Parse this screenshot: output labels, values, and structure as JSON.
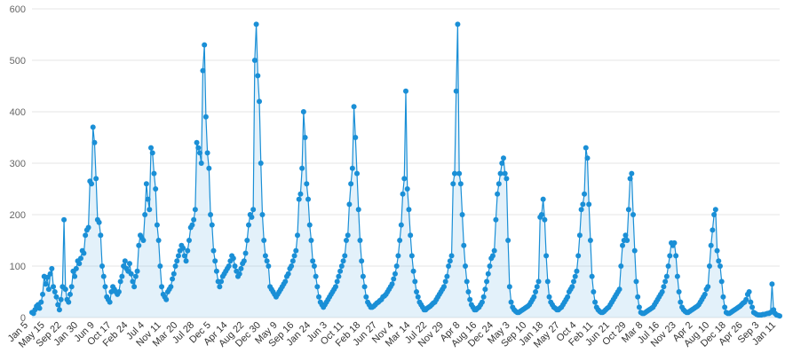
{
  "chart_data": {
    "type": "area",
    "title": "",
    "xlabel": "",
    "ylabel": "",
    "ylim": [
      0,
      600
    ],
    "yticks": [
      0,
      100,
      200,
      300,
      400,
      500,
      600
    ],
    "grid": true,
    "legend": "none",
    "colors": {
      "series": "#1a8fd6",
      "grid": "#e6e6e6",
      "tick_text": "#666666"
    },
    "x_tick_labels": [
      "Jan 5",
      "May 15",
      "Sep 22",
      "Jan 30",
      "Jun 9",
      "Oct 17",
      "Feb 24",
      "Jul 4",
      "Nov 11",
      "Mar 20",
      "Jul 28",
      "Dec 5",
      "Apr 14",
      "Aug 22",
      "Dec 30",
      "May 9",
      "Sep 16",
      "Jan 24",
      "Jun 3",
      "Oct 11",
      "Feb 18",
      "Jun 27",
      "Nov 4",
      "Mar 14",
      "Jul 22",
      "Nov 29",
      "Apr 8",
      "Aug 16",
      "Dec 24",
      "May 3",
      "Sep 10",
      "Jan 18",
      "May 27",
      "Oct 4",
      "Feb 11",
      "Jun 21",
      "Oct 29",
      "Mar 8",
      "Jul 16",
      "Nov 23",
      "Apr 2",
      "Aug 10",
      "Dec 18",
      "Apr 26",
      "Sep 3",
      "Jan 11"
    ],
    "series": [
      {
        "values": [
          10,
          8,
          15,
          22,
          25,
          18,
          30,
          45,
          80,
          65,
          78,
          55,
          85,
          95,
          60,
          50,
          40,
          25,
          15,
          35,
          60,
          190,
          55,
          35,
          30,
          45,
          60,
          90,
          80,
          95,
          110,
          105,
          115,
          130,
          125,
          160,
          170,
          175,
          265,
          260,
          370,
          340,
          270,
          190,
          185,
          160,
          100,
          80,
          60,
          40,
          35,
          30,
          50,
          60,
          55,
          50,
          45,
          50,
          70,
          80,
          100,
          110,
          95,
          90,
          105,
          85,
          70,
          60,
          80,
          90,
          140,
          160,
          155,
          150,
          200,
          260,
          230,
          210,
          330,
          320,
          280,
          250,
          180,
          150,
          100,
          60,
          45,
          40,
          35,
          50,
          55,
          60,
          75,
          85,
          100,
          110,
          120,
          130,
          140,
          135,
          120,
          110,
          130,
          150,
          175,
          180,
          190,
          210,
          340,
          330,
          320,
          300,
          480,
          530,
          390,
          320,
          290,
          200,
          180,
          130,
          110,
          90,
          70,
          60,
          70,
          80,
          85,
          90,
          95,
          100,
          110,
          120,
          115,
          100,
          90,
          80,
          85,
          95,
          105,
          110,
          125,
          150,
          180,
          200,
          195,
          210,
          500,
          570,
          470,
          420,
          300,
          200,
          150,
          120,
          110,
          100,
          60,
          55,
          50,
          45,
          40,
          45,
          50,
          55,
          60,
          65,
          70,
          80,
          85,
          95,
          100,
          110,
          120,
          130,
          160,
          230,
          240,
          290,
          400,
          350,
          260,
          230,
          180,
          150,
          110,
          100,
          80,
          60,
          40,
          30,
          25,
          20,
          25,
          30,
          35,
          40,
          45,
          50,
          55,
          60,
          70,
          80,
          90,
          100,
          110,
          120,
          150,
          160,
          220,
          260,
          290,
          410,
          350,
          280,
          210,
          150,
          110,
          80,
          60,
          40,
          30,
          25,
          20,
          20,
          22,
          25,
          28,
          30,
          33,
          35,
          40,
          42,
          45,
          50,
          55,
          60,
          65,
          75,
          85,
          100,
          120,
          150,
          180,
          240,
          270,
          440,
          250,
          210,
          160,
          120,
          90,
          70,
          50,
          40,
          30,
          25,
          20,
          15,
          15,
          18,
          20,
          22,
          25,
          28,
          30,
          35,
          40,
          45,
          50,
          55,
          60,
          70,
          80,
          100,
          110,
          120,
          260,
          280,
          440,
          570,
          280,
          260,
          200,
          140,
          100,
          70,
          50,
          35,
          25,
          20,
          15,
          15,
          18,
          20,
          25,
          30,
          40,
          55,
          70,
          85,
          100,
          115,
          120,
          130,
          190,
          240,
          260,
          280,
          300,
          310,
          280,
          270,
          150,
          60,
          30,
          20,
          15,
          12,
          10,
          10,
          12,
          14,
          16,
          18,
          20,
          22,
          25,
          30,
          35,
          40,
          50,
          60,
          70,
          195,
          200,
          230,
          190,
          120,
          70,
          40,
          30,
          25,
          20,
          18,
          15,
          15,
          18,
          20,
          25,
          30,
          35,
          40,
          50,
          55,
          60,
          70,
          80,
          90,
          120,
          160,
          210,
          220,
          240,
          330,
          310,
          220,
          150,
          80,
          50,
          30,
          20,
          15,
          12,
          10,
          10,
          12,
          15,
          18,
          20,
          25,
          30,
          35,
          40,
          45,
          50,
          55,
          100,
          140,
          150,
          160,
          150,
          210,
          270,
          280,
          200,
          130,
          70,
          40,
          20,
          10,
          8,
          8,
          10,
          12,
          14,
          16,
          18,
          20,
          25,
          30,
          35,
          40,
          45,
          50,
          60,
          70,
          80,
          100,
          120,
          145,
          140,
          145,
          120,
          80,
          50,
          30,
          20,
          15,
          12,
          10,
          10,
          12,
          14,
          16,
          18,
          20,
          22,
          25,
          30,
          35,
          40,
          45,
          55,
          60,
          100,
          140,
          170,
          200,
          210,
          130,
          110,
          100,
          70,
          40,
          20,
          10,
          8,
          8,
          10,
          12,
          14,
          16,
          18,
          20,
          22,
          25,
          28,
          30,
          35,
          45,
          50,
          30,
          20,
          10,
          8,
          6,
          5,
          5,
          5,
          6,
          6,
          7,
          8,
          8,
          10,
          65,
          15,
          8,
          5,
          4,
          3
        ]
      }
    ]
  }
}
